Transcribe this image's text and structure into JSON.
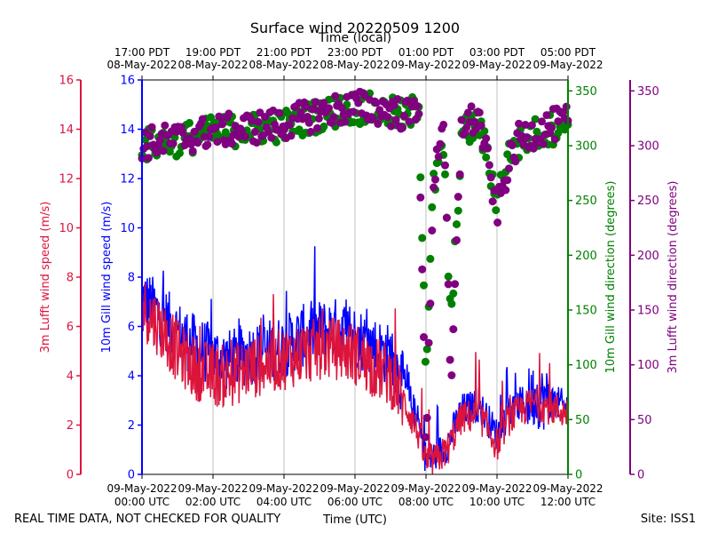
{
  "chart_data": {
    "type": "line",
    "title": "Surface wind 20220509 1200",
    "top_xlabel": "Time (local)",
    "xlabel": "Time (UTC)",
    "footer_left": "REAL TIME DATA, NOT CHECKED FOR QUALITY",
    "footer_right": "Site: ISS1",
    "x_range_hours": [
      0,
      12
    ],
    "grid": "vertical",
    "bottom_ticks": [
      {
        "date": "09-May-2022",
        "time": "00:00 UTC"
      },
      {
        "date": "09-May-2022",
        "time": "02:00 UTC"
      },
      {
        "date": "09-May-2022",
        "time": "04:00 UTC"
      },
      {
        "date": "09-May-2022",
        "time": "06:00 UTC"
      },
      {
        "date": "09-May-2022",
        "time": "08:00 UTC"
      },
      {
        "date": "09-May-2022",
        "time": "10:00 UTC"
      },
      {
        "date": "09-May-2022",
        "time": "12:00 UTC"
      }
    ],
    "top_ticks": [
      {
        "time": "17:00 PDT",
        "date": "08-May-2022"
      },
      {
        "time": "19:00 PDT",
        "date": "08-May-2022"
      },
      {
        "time": "21:00 PDT",
        "date": "08-May-2022"
      },
      {
        "time": "23:00 PDT",
        "date": "08-May-2022"
      },
      {
        "time": "01:00 PDT",
        "date": "09-May-2022"
      },
      {
        "time": "03:00 PDT",
        "date": "09-May-2022"
      },
      {
        "time": "05:00 PDT",
        "date": "09-May-2022"
      }
    ],
    "axes": {
      "lufft_speed": {
        "label": "3m Lufft wind speed (m/s)",
        "range": [
          0,
          16
        ],
        "ticks": [
          0,
          2,
          4,
          6,
          8,
          10,
          12,
          14,
          16
        ],
        "color": "#dc143c"
      },
      "gill_speed": {
        "label": "10m Gill wind speed (m/s)",
        "range": [
          0,
          16
        ],
        "ticks": [
          0,
          2,
          4,
          6,
          8,
          10,
          12,
          14,
          16
        ],
        "color": "#0000ff"
      },
      "gill_dir": {
        "label": "10m Gill wind direction (degrees)",
        "range": [
          0,
          360
        ],
        "ticks": [
          0,
          50,
          100,
          150,
          200,
          250,
          300,
          350
        ],
        "color": "#008000"
      },
      "lufft_dir": {
        "label": "3m Lufft wind direction (degrees)",
        "range": [
          0,
          360
        ],
        "ticks": [
          0,
          50,
          100,
          150,
          200,
          250,
          300,
          350
        ],
        "color": "#800080"
      }
    },
    "series": [
      {
        "name": "10m Gill wind speed",
        "kind": "line",
        "color": "#0000ff",
        "trend": [
          [
            0,
            7.2
          ],
          [
            0.5,
            6.5
          ],
          [
            1,
            5.8
          ],
          [
            1.5,
            5.2
          ],
          [
            2,
            4.8
          ],
          [
            2.5,
            4.6
          ],
          [
            3,
            4.9
          ],
          [
            3.5,
            5.0
          ],
          [
            4,
            5.2
          ],
          [
            4.5,
            5.6
          ],
          [
            5,
            5.8
          ],
          [
            5.5,
            5.9
          ],
          [
            6,
            5.6
          ],
          [
            6.5,
            5.2
          ],
          [
            7,
            4.8
          ],
          [
            7.5,
            3.2
          ],
          [
            7.8,
            2.0
          ],
          [
            8,
            0.6
          ],
          [
            8.3,
            0.8
          ],
          [
            8.6,
            1.2
          ],
          [
            9,
            2.6
          ],
          [
            9.5,
            2.8
          ],
          [
            10,
            1.6
          ],
          [
            10.3,
            2.5
          ],
          [
            11,
            3.2
          ],
          [
            11.5,
            3.0
          ],
          [
            12,
            2.7
          ]
        ]
      },
      {
        "name": "3m Lufft wind speed",
        "kind": "line",
        "color": "#dc143c",
        "trend": [
          [
            0,
            6.8
          ],
          [
            0.5,
            6.0
          ],
          [
            1,
            5.0
          ],
          [
            1.5,
            4.3
          ],
          [
            2,
            4.0
          ],
          [
            2.5,
            4.0
          ],
          [
            3,
            4.3
          ],
          [
            3.5,
            4.5
          ],
          [
            4,
            4.7
          ],
          [
            4.5,
            4.9
          ],
          [
            5,
            5.1
          ],
          [
            5.5,
            5.1
          ],
          [
            6,
            4.9
          ],
          [
            6.5,
            4.4
          ],
          [
            7,
            4.0
          ],
          [
            7.5,
            2.6
          ],
          [
            7.8,
            1.6
          ],
          [
            8,
            0.5
          ],
          [
            8.3,
            0.6
          ],
          [
            8.6,
            1.0
          ],
          [
            9,
            2.3
          ],
          [
            9.5,
            2.4
          ],
          [
            10,
            1.2
          ],
          [
            10.3,
            2.2
          ],
          [
            11,
            2.9
          ],
          [
            11.5,
            2.7
          ],
          [
            12,
            2.5
          ]
        ]
      },
      {
        "name": "10m Gill wind direction",
        "kind": "scatter",
        "color": "#008000",
        "trend": [
          [
            0,
            300
          ],
          [
            1,
            305
          ],
          [
            2,
            312
          ],
          [
            3,
            315
          ],
          [
            4,
            318
          ],
          [
            5,
            328
          ],
          [
            6,
            335
          ],
          [
            7,
            330
          ],
          [
            7.5,
            325
          ],
          [
            7.8,
            340
          ],
          [
            8,
            95
          ],
          [
            8.2,
            260
          ],
          [
            8.5,
            300
          ],
          [
            8.7,
            130
          ],
          [
            9,
            310
          ],
          [
            9.5,
            320
          ],
          [
            10,
            250
          ],
          [
            10.3,
            290
          ],
          [
            10.6,
            300
          ],
          [
            11,
            310
          ],
          [
            11.5,
            315
          ],
          [
            12,
            320
          ]
        ]
      },
      {
        "name": "3m Lufft wind direction",
        "kind": "scatter",
        "color": "#800080",
        "trend": [
          [
            0,
            302
          ],
          [
            1,
            306
          ],
          [
            2,
            313
          ],
          [
            3,
            316
          ],
          [
            4,
            320
          ],
          [
            5,
            330
          ],
          [
            6,
            336
          ],
          [
            7,
            332
          ],
          [
            7.5,
            327
          ],
          [
            7.8,
            340
          ],
          [
            8,
            10
          ],
          [
            8.2,
            265
          ],
          [
            8.5,
            330
          ],
          [
            8.7,
            70
          ],
          [
            9,
            320
          ],
          [
            9.5,
            325
          ],
          [
            10,
            240
          ],
          [
            10.3,
            280
          ],
          [
            10.6,
            305
          ],
          [
            11,
            312
          ],
          [
            11.5,
            318
          ],
          [
            12,
            322
          ]
        ]
      }
    ]
  }
}
